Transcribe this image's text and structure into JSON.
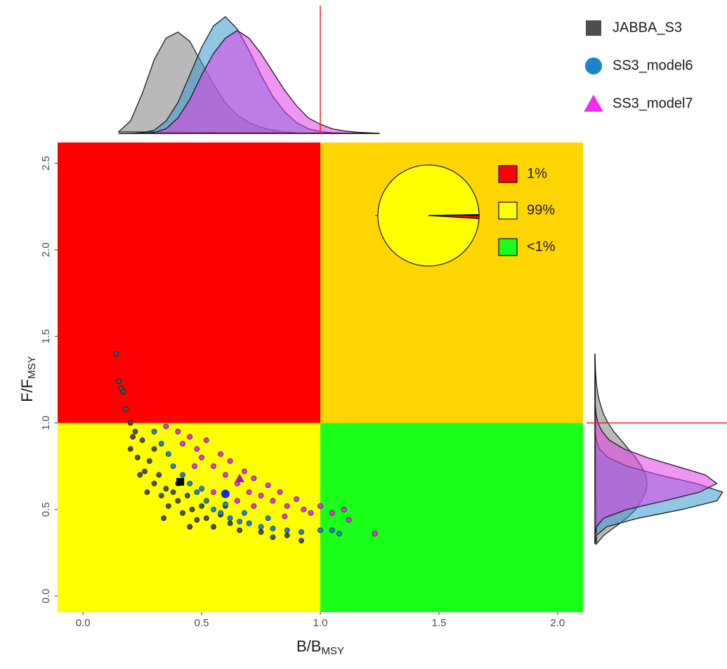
{
  "chart_data": {
    "type": "kobe",
    "xlabel": {
      "text": "B/B",
      "subscript": "MSY"
    },
    "ylabel": {
      "text": "F/F",
      "subscript": "MSY"
    },
    "xlim": [
      -0.107,
      2.107
    ],
    "ylim": [
      -0.093,
      2.62
    ],
    "xticks": [
      {
        "value": 0,
        "label": "0.0"
      },
      {
        "value": 0.5,
        "label": "0.5"
      },
      {
        "value": 1,
        "label": "1.0"
      },
      {
        "value": 1.5,
        "label": "1.5"
      },
      {
        "value": 2,
        "label": "2.0"
      }
    ],
    "yticks": [
      {
        "value": 0,
        "label": "0.0"
      },
      {
        "value": 0.5,
        "label": "0.5"
      },
      {
        "value": 1,
        "label": "1.0"
      },
      {
        "value": 1.5,
        "label": "1.5"
      },
      {
        "value": 2,
        "label": "2.0"
      },
      {
        "value": 2.5,
        "label": "2.5"
      }
    ],
    "xref": 1,
    "yref": 1,
    "reference_color": "#e8202a",
    "quadrant_colors": {
      "low_b_high_f": "#ff0000",
      "high_b_high_f": "#ffd500",
      "low_b_low_f": "#ffff00",
      "high_b_low_f": "#1aff1a"
    },
    "series": [
      {
        "name": "JABBA_S3",
        "color": "#4d4d4d",
        "median_color": "#000000",
        "density_color": "#808080",
        "marker": "square",
        "median_x": 0.41,
        "median_y": 0.66,
        "x": [
          0.14,
          0.15,
          0.17,
          0.18,
          0.2,
          0.21,
          0.2,
          0.23,
          0.25,
          0.26,
          0.28,
          0.3,
          0.32,
          0.33,
          0.35,
          0.36,
          0.38,
          0.4,
          0.42,
          0.44,
          0.46,
          0.48,
          0.5,
          0.52,
          0.55,
          0.58,
          0.62,
          0.66,
          0.7,
          0.75,
          0.8,
          0.86,
          0.92,
          0.3,
          0.22,
          0.27,
          0.4,
          0.34,
          0.16,
          0.45,
          0.6,
          0.24
        ],
        "values": [
          1.4,
          1.24,
          1.18,
          1.08,
          1.0,
          0.92,
          0.85,
          0.8,
          0.9,
          0.72,
          0.78,
          0.65,
          0.7,
          0.58,
          0.62,
          0.52,
          0.6,
          0.55,
          0.48,
          0.58,
          0.5,
          0.44,
          0.52,
          0.45,
          0.4,
          0.47,
          0.42,
          0.38,
          0.42,
          0.37,
          0.34,
          0.35,
          0.32,
          0.85,
          0.95,
          0.6,
          0.65,
          0.45,
          1.2,
          0.4,
          0.52,
          0.7
        ]
      },
      {
        "name": "SS3_model6",
        "color": "#1a86c8",
        "median_color": "#1030e0",
        "density_color": "#3a96d0",
        "marker": "circle",
        "median_x": 0.6,
        "median_y": 0.59,
        "x": [
          0.3,
          0.33,
          0.36,
          0.38,
          0.42,
          0.45,
          0.48,
          0.52,
          0.55,
          0.58,
          0.62,
          0.66,
          0.7,
          0.75,
          0.8,
          0.86,
          0.92,
          1.0,
          1.05,
          1.08,
          0.5,
          0.6,
          0.68,
          0.78
        ],
        "values": [
          0.95,
          0.88,
          0.82,
          0.75,
          0.7,
          0.65,
          0.6,
          0.55,
          0.5,
          0.48,
          0.45,
          0.43,
          0.42,
          0.4,
          0.39,
          0.38,
          0.37,
          0.38,
          0.38,
          0.36,
          0.62,
          0.53,
          0.48,
          0.45
        ]
      },
      {
        "name": "SS3_model7",
        "color": "#ee2dee",
        "median_color": "#a020a0",
        "density_color": "#e040e8",
        "marker": "triangle",
        "median_x": 0.66,
        "median_y": 0.68,
        "x": [
          0.35,
          0.4,
          0.42,
          0.45,
          0.48,
          0.5,
          0.52,
          0.55,
          0.58,
          0.6,
          0.62,
          0.65,
          0.68,
          0.7,
          0.72,
          0.75,
          0.78,
          0.8,
          0.83,
          0.86,
          0.9,
          0.93,
          0.96,
          1.0,
          1.05,
          1.1,
          1.12,
          1.23,
          0.55,
          0.65,
          0.85,
          0.47,
          0.72
        ],
        "values": [
          0.98,
          0.95,
          0.88,
          0.92,
          0.85,
          0.8,
          0.9,
          0.75,
          0.82,
          0.7,
          0.78,
          0.65,
          0.72,
          0.6,
          0.68,
          0.58,
          0.64,
          0.55,
          0.6,
          0.52,
          0.56,
          0.5,
          0.48,
          0.52,
          0.48,
          0.5,
          0.44,
          0.36,
          0.6,
          0.55,
          0.46,
          0.75,
          0.52
        ]
      }
    ],
    "density_b": {
      "x": [
        0.15,
        0.2,
        0.25,
        0.3,
        0.35,
        0.4,
        0.45,
        0.5,
        0.55,
        0.6,
        0.65,
        0.7,
        0.75,
        0.8,
        0.85,
        0.9,
        0.95,
        1.0,
        1.05,
        1.1,
        1.15,
        1.2,
        1.25
      ],
      "lim": [
        0,
        4
      ],
      "values": [
        [
          0.05,
          0.4,
          1.3,
          2.4,
          3.1,
          3.3,
          3.0,
          2.3,
          1.6,
          1.0,
          0.6,
          0.35,
          0.2,
          0.1,
          0.05,
          0.02,
          0,
          0,
          0,
          0,
          0,
          0,
          0
        ],
        [
          0,
          0,
          0.02,
          0.1,
          0.4,
          1.0,
          1.9,
          2.8,
          3.5,
          3.8,
          3.4,
          2.7,
          1.9,
          1.2,
          0.7,
          0.35,
          0.15,
          0.06,
          0.02,
          0.01,
          0,
          0,
          0
        ],
        [
          0,
          0,
          0,
          0.03,
          0.15,
          0.5,
          1.1,
          1.9,
          2.6,
          3.1,
          3.35,
          3.1,
          2.6,
          2.0,
          1.4,
          0.9,
          0.5,
          0.3,
          0.15,
          0.08,
          0.04,
          0.02,
          0
        ]
      ]
    },
    "density_f": {
      "x": [
        0.3,
        0.35,
        0.4,
        0.45,
        0.5,
        0.55,
        0.6,
        0.65,
        0.7,
        0.75,
        0.8,
        0.85,
        0.9,
        0.95,
        1.0,
        1.05,
        1.1,
        1.15,
        1.2,
        1.25,
        1.3,
        1.35,
        1.4
      ],
      "lim": [
        0,
        4.5
      ],
      "values": [
        [
          0.05,
          0.3,
          0.7,
          1.1,
          1.4,
          1.6,
          1.75,
          1.8,
          1.75,
          1.6,
          1.4,
          1.15,
          0.9,
          0.65,
          0.45,
          0.3,
          0.2,
          0.12,
          0.07,
          0.04,
          0.02,
          0.01,
          0
        ],
        [
          0,
          0.05,
          0.4,
          1.5,
          3.0,
          4.2,
          4.4,
          3.5,
          2.2,
          1.1,
          0.45,
          0.15,
          0.05,
          0.01,
          0,
          0,
          0,
          0,
          0,
          0,
          0,
          0,
          0
        ],
        [
          0,
          0,
          0.05,
          0.3,
          1.1,
          2.4,
          3.6,
          4.2,
          3.8,
          2.8,
          1.8,
          1.0,
          0.5,
          0.25,
          0.1,
          0.04,
          0.01,
          0,
          0,
          0,
          0,
          0,
          0
        ]
      ]
    },
    "pie": {
      "values": [
        1,
        98.7,
        0.3
      ],
      "value_labels": [
        "1%",
        "99%",
        "<1%"
      ],
      "colors": [
        "#ff0000",
        "#ffff00",
        "#1aff1a"
      ]
    }
  }
}
